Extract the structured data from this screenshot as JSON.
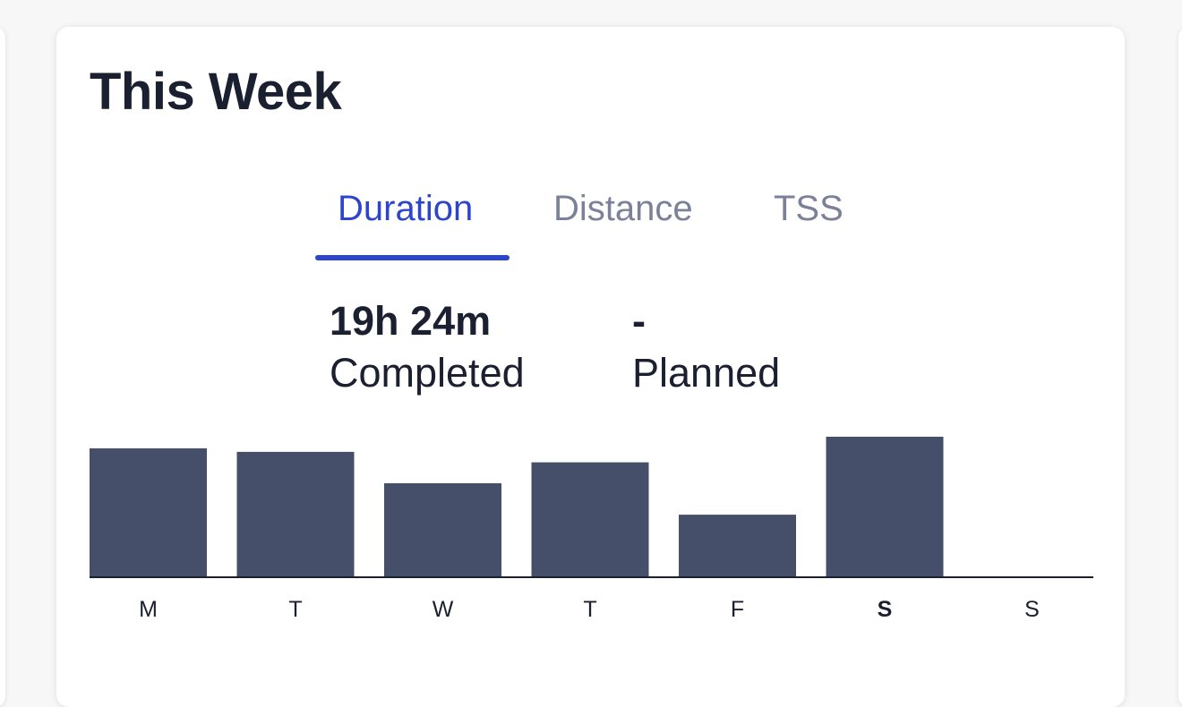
{
  "card": {
    "title": "This Week"
  },
  "tabs": [
    {
      "label": "Duration",
      "active": true
    },
    {
      "label": "Distance",
      "active": false
    },
    {
      "label": "TSS",
      "active": false
    }
  ],
  "stats": {
    "completed": {
      "value": "19h 24m",
      "label": "Completed"
    },
    "planned": {
      "value": "-",
      "label": "Planned"
    }
  },
  "colors": {
    "accent": "#2d45cc",
    "bar": "#464f6a",
    "text": "#1b2030",
    "muted_tab": "#7a8199"
  },
  "chart_data": {
    "type": "bar",
    "categories": [
      "M",
      "T",
      "W",
      "T",
      "F",
      "S",
      "S"
    ],
    "values": [
      1.1,
      1.07,
      0.8,
      0.98,
      0.53,
      1.2,
      0
    ],
    "highlight_index": 5,
    "ylim": [
      0,
      1.2
    ],
    "title": "",
    "xlabel": "",
    "ylabel": "",
    "grid": false,
    "legend": "none"
  }
}
